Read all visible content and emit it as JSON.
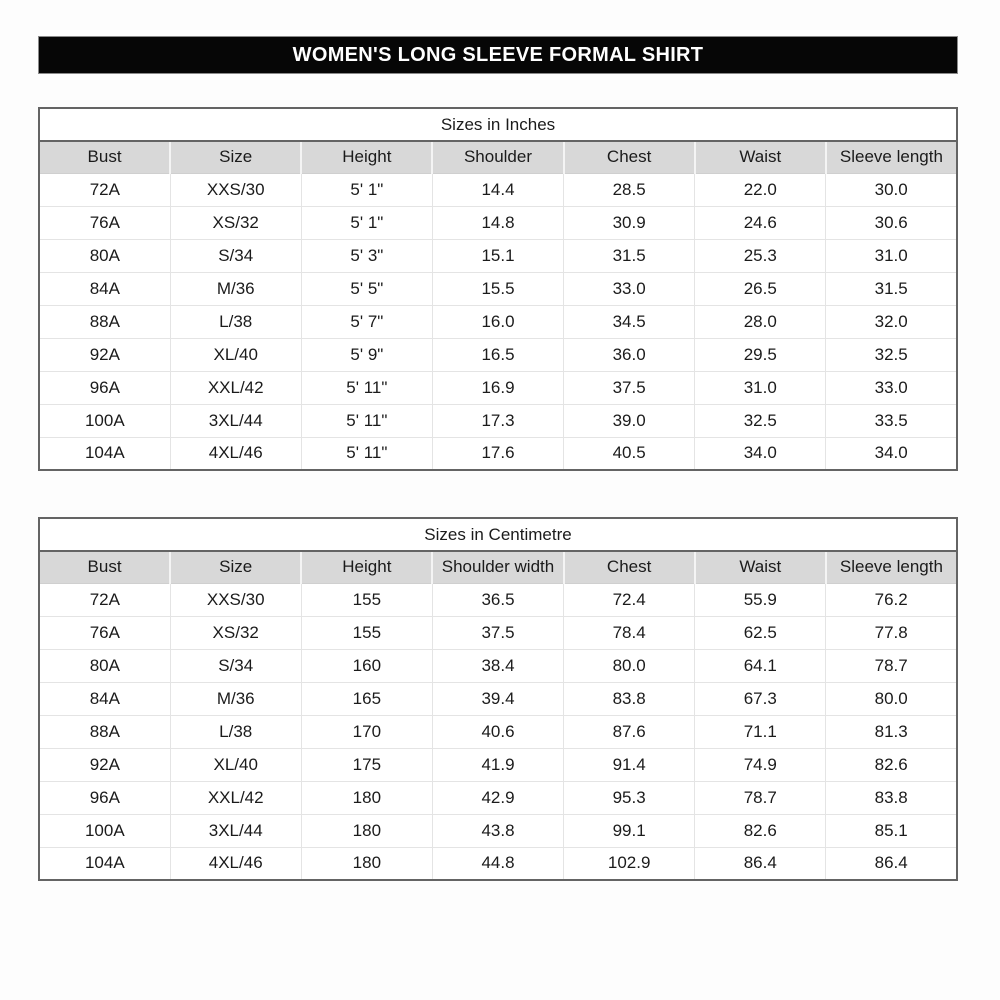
{
  "title": "WOMEN'S LONG SLEEVE FORMAL SHIRT",
  "colors": {
    "banner_bg": "#060606",
    "banner_text": "#ffffff",
    "header_band_bg": "#d8d8d8",
    "outer_border": "#646464",
    "grid_line": "#e4e4e4",
    "row_bg": "#ffffff",
    "text": "#1b1b1b"
  },
  "chart_data": [
    {
      "type": "table",
      "name": "sizes-in-inches-table",
      "title": "Sizes in Inches",
      "columns": [
        "Bust",
        "Size",
        "Height",
        "Shoulder",
        "Chest",
        "Waist",
        "Sleeve length"
      ],
      "rows": [
        [
          "72A",
          "XXS/30",
          "5' 1\"",
          "14.4",
          "28.5",
          "22.0",
          "30.0"
        ],
        [
          "76A",
          "XS/32",
          "5' 1\"",
          "14.8",
          "30.9",
          "24.6",
          "30.6"
        ],
        [
          "80A",
          "S/34",
          "5' 3\"",
          "15.1",
          "31.5",
          "25.3",
          "31.0"
        ],
        [
          "84A",
          "M/36",
          "5' 5\"",
          "15.5",
          "33.0",
          "26.5",
          "31.5"
        ],
        [
          "88A",
          "L/38",
          "5' 7\"",
          "16.0",
          "34.5",
          "28.0",
          "32.0"
        ],
        [
          "92A",
          "XL/40",
          "5' 9\"",
          "16.5",
          "36.0",
          "29.5",
          "32.5"
        ],
        [
          "96A",
          "XXL/42",
          "5' 11\"",
          "16.9",
          "37.5",
          "31.0",
          "33.0"
        ],
        [
          "100A",
          "3XL/44",
          "5' 11\"",
          "17.3",
          "39.0",
          "32.5",
          "33.5"
        ],
        [
          "104A",
          "4XL/46",
          "5' 11\"",
          "17.6",
          "40.5",
          "34.0",
          "34.0"
        ]
      ]
    },
    {
      "type": "table",
      "name": "sizes-in-centimetre-table",
      "title": "Sizes in Centimetre",
      "columns": [
        "Bust",
        "Size",
        "Height",
        "Shoulder width",
        "Chest",
        "Waist",
        "Sleeve length"
      ],
      "rows": [
        [
          "72A",
          "XXS/30",
          "155",
          "36.5",
          "72.4",
          "55.9",
          "76.2"
        ],
        [
          "76A",
          "XS/32",
          "155",
          "37.5",
          "78.4",
          "62.5",
          "77.8"
        ],
        [
          "80A",
          "S/34",
          "160",
          "38.4",
          "80.0",
          "64.1",
          "78.7"
        ],
        [
          "84A",
          "M/36",
          "165",
          "39.4",
          "83.8",
          "67.3",
          "80.0"
        ],
        [
          "88A",
          "L/38",
          "170",
          "40.6",
          "87.6",
          "71.1",
          "81.3"
        ],
        [
          "92A",
          "XL/40",
          "175",
          "41.9",
          "91.4",
          "74.9",
          "82.6"
        ],
        [
          "96A",
          "XXL/42",
          "180",
          "42.9",
          "95.3",
          "78.7",
          "83.8"
        ],
        [
          "100A",
          "3XL/44",
          "180",
          "43.8",
          "99.1",
          "82.6",
          "85.1"
        ],
        [
          "104A",
          "4XL/46",
          "180",
          "44.8",
          "102.9",
          "86.4",
          "86.4"
        ]
      ]
    }
  ]
}
